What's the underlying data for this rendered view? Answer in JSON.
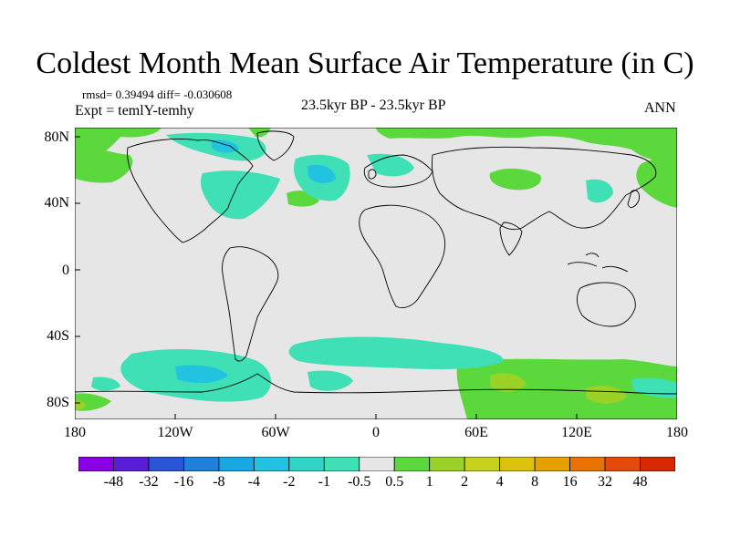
{
  "figure": {
    "title": "Coldest Month Mean Surface Air Temperature (in C)",
    "stats": "rmsd= 0.39494 diff= -0.030608",
    "experiment": "Expt = temlY-temhy",
    "period": "23.5kyr BP - 23.5kyr BP",
    "season": "ANN"
  },
  "axes": {
    "y_ticks": [
      "80N",
      "40N",
      "0",
      "40S",
      "80S"
    ],
    "x_ticks": [
      "180",
      "120W",
      "60W",
      "0",
      "60E",
      "120E",
      "180"
    ]
  },
  "legend": {
    "labels": [
      "-48",
      "-32",
      "-16",
      "-8",
      "-4",
      "-2",
      "-1",
      "-0.5",
      "0.5",
      "1",
      "2",
      "4",
      "8",
      "16",
      "32",
      "48"
    ],
    "colors": [
      "#8a00e6",
      "#5a1cd8",
      "#2a55d8",
      "#1e7fdc",
      "#16a8e0",
      "#22c3e0",
      "#2fd6c8",
      "#40e0b6",
      "#e6e6e6",
      "#5ad83c",
      "#9ad228",
      "#c6d21e",
      "#dcc20c",
      "#e6a000",
      "#ea7200",
      "#e64a0a",
      "#d82800"
    ]
  },
  "colors": {
    "background_land_ocean": "#e6e6e6",
    "coast": "#000000"
  }
}
